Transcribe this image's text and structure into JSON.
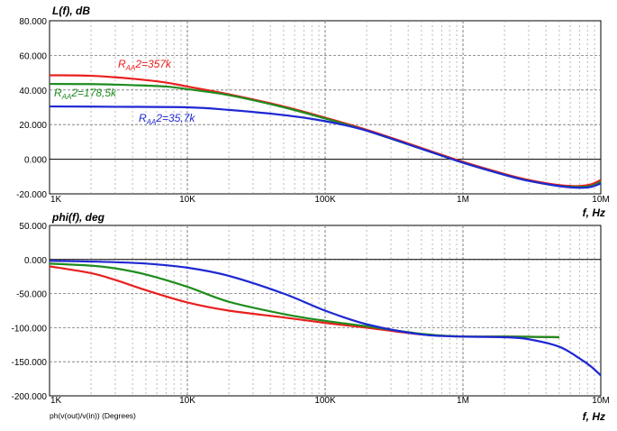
{
  "chart_data": [
    {
      "type": "line",
      "ylabel": "L(f), dB",
      "xlabel": "f, Hz",
      "xscale": "log",
      "xlim": [
        1000,
        10000000
      ],
      "ylim": [
        -20,
        80
      ],
      "xticks": [
        1000,
        10000,
        100000,
        1000000,
        10000000
      ],
      "xtick_labels": [
        "1K",
        "10K",
        "100K",
        "1M",
        "10M"
      ],
      "yticks": [
        80,
        60,
        40,
        20,
        0,
        -20
      ],
      "ytick_labels": [
        "80.000",
        "60.000",
        "40.000",
        "20.000",
        "0.000",
        "-20.000"
      ],
      "grid": true,
      "series": [
        {
          "name": "RAA2=357k",
          "label_main": "R",
          "label_sub": "AA",
          "label_rest": "2=357k",
          "color": "#e8201e",
          "x": [
            1000,
            2000,
            4000,
            7000,
            10000,
            20000,
            50000,
            100000,
            200000,
            500000,
            1000000,
            2000000,
            3000000,
            5000000,
            7000000,
            8500000,
            10000000
          ],
          "y": [
            48.5,
            48.2,
            46.5,
            44.3,
            42,
            37.5,
            30.5,
            24,
            17,
            6.5,
            -1.5,
            -8.5,
            -12,
            -15,
            -15.5,
            -14.5,
            -12
          ]
        },
        {
          "name": "RAA2=178,5k",
          "label_main": "R",
          "label_sub": "AA",
          "label_rest": "2=178,5k",
          "color": "#1e8c1e",
          "x": [
            1000,
            2000,
            4000,
            7000,
            10000,
            20000,
            50000,
            100000,
            200000,
            500000,
            1000000,
            2000000,
            3000000,
            5000000,
            7000000,
            8500000,
            10000000
          ],
          "y": [
            43.5,
            43.4,
            42.8,
            42,
            40.5,
            37,
            30,
            23.5,
            16.5,
            6,
            -2,
            -9,
            -12.5,
            -15.5,
            -16,
            -15.5,
            -13
          ]
        },
        {
          "name": "RAA2=35,7k",
          "label_main": "R",
          "label_sub": "AA",
          "label_rest": "2=35,7k",
          "color": "#1e28d2",
          "x": [
            1000,
            3000,
            10000,
            20000,
            50000,
            100000,
            200000,
            500000,
            1000000,
            2000000,
            3000000,
            5000000,
            7000000,
            8500000,
            10000000
          ],
          "y": [
            30.5,
            30.3,
            30,
            28.5,
            25.5,
            22,
            16.5,
            6,
            -2,
            -9,
            -12.5,
            -15.5,
            -16.5,
            -16,
            -14
          ]
        }
      ]
    },
    {
      "type": "line",
      "ylabel": "phi(f), deg",
      "xlabel": "f, Hz",
      "xscale": "log",
      "xlim": [
        1000,
        10000000
      ],
      "ylim": [
        -200,
        50
      ],
      "xticks": [
        1000,
        10000,
        100000,
        1000000,
        10000000
      ],
      "xtick_labels": [
        "1K",
        "10K",
        "100K",
        "1M",
        "10M"
      ],
      "yticks": [
        50,
        0,
        -50,
        -100,
        -150,
        -200
      ],
      "ytick_labels": [
        "50.000",
        "0.000",
        "-50.000",
        "-100.000",
        "-150.000",
        "-200.000"
      ],
      "grid": true,
      "footnote": "ph(v(out)/v(in)) (Degrees)",
      "series": [
        {
          "name": "RAA2=357k",
          "color": "#e8201e",
          "x": [
            1000,
            2000,
            3000,
            5000,
            10000,
            20000,
            50000,
            100000,
            200000,
            500000,
            1000000,
            2000000,
            5000000
          ],
          "y": [
            -10,
            -20,
            -30,
            -45,
            -63,
            -75,
            -85,
            -93,
            -100,
            -110,
            -113,
            -113,
            -114
          ]
        },
        {
          "name": "RAA2=178,5k",
          "color": "#1e8c1e",
          "x": [
            1000,
            2000,
            3000,
            5000,
            10000,
            20000,
            50000,
            100000,
            200000,
            500000,
            1000000,
            2000000,
            5000000
          ],
          "y": [
            -6,
            -9,
            -13,
            -22,
            -40,
            -62,
            -80,
            -90,
            -98,
            -109,
            -113,
            -113,
            -114
          ]
        },
        {
          "name": "RAA2=35,7k",
          "color": "#1e28d2",
          "x": [
            1000,
            2000,
            3000,
            5000,
            10000,
            20000,
            50000,
            100000,
            200000,
            500000,
            1000000,
            2000000,
            3000000,
            5000000,
            7000000,
            8500000,
            10000000
          ],
          "y": [
            -2,
            -3,
            -4,
            -6,
            -12,
            -24,
            -50,
            -75,
            -95,
            -110,
            -113,
            -114,
            -117,
            -128,
            -145,
            -157,
            -170
          ]
        }
      ]
    }
  ]
}
